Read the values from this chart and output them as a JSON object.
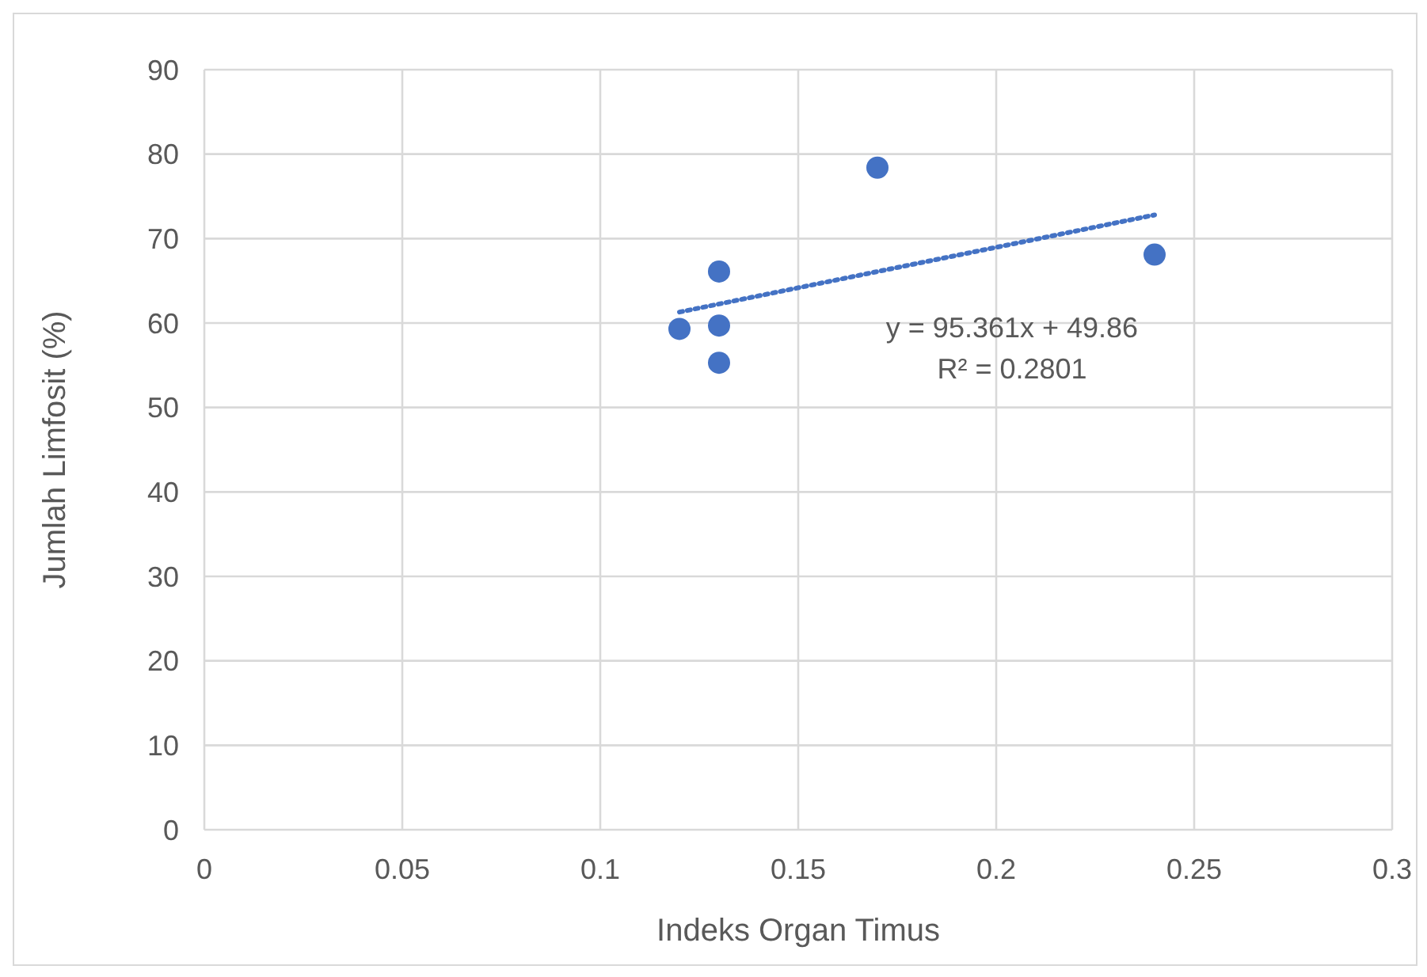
{
  "chart_data": {
    "type": "scatter",
    "xlabel": "Indeks Organ Timus",
    "ylabel": "Jumlah Limfosit (%)",
    "series": [
      {
        "type": "scatter",
        "color": "#4472c4",
        "x": [
          0.12,
          0.13,
          0.13,
          0.13,
          0.17,
          0.24
        ],
        "values": [
          59.3,
          66.1,
          59.7,
          55.3,
          78.4,
          68.1
        ],
        "marker": "circle"
      },
      {
        "type": "line",
        "color": "#4472c4",
        "x": [
          0.12,
          0.24
        ],
        "values": [
          61.3,
          72.8
        ],
        "line_style": "dotted",
        "marker": "none"
      }
    ],
    "annotations": [
      "y = 95.361x + 49.86\nR² = 0.2801"
    ],
    "xlim": [
      0,
      0.3
    ],
    "xticks": [
      0,
      0.05,
      0.1,
      0.15,
      0.2,
      0.25,
      0.3
    ],
    "ylim": [
      0,
      90
    ],
    "yticks": [
      0,
      10,
      20,
      30,
      40,
      50,
      60,
      70,
      80,
      90
    ],
    "grid": true,
    "legend": false
  }
}
